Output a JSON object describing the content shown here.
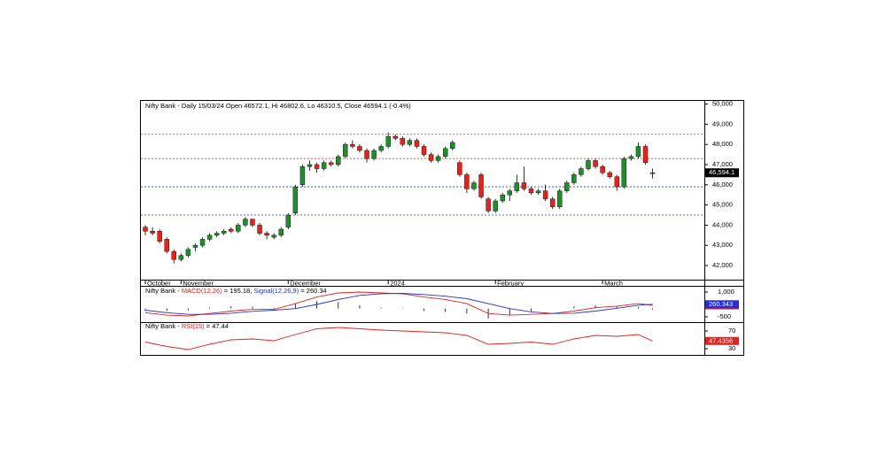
{
  "chart_data": [
    {
      "type": "candlestick",
      "title": "Nifty Bank - Daily 15/03/24 Open 46572.1, Hi 46802.6, Lo 46310.5, Close 46594.1 (-0.4%)",
      "ohlc": [
        [
          43900,
          44000,
          43500,
          43700
        ],
        [
          43700,
          43900,
          43500,
          43600
        ],
        [
          43700,
          43800,
          43100,
          43200
        ],
        [
          43300,
          43400,
          42600,
          42700
        ],
        [
          42700,
          42800,
          42100,
          42300
        ],
        [
          42300,
          42600,
          42200,
          42500
        ],
        [
          42500,
          42900,
          42400,
          42800
        ],
        [
          42900,
          43100,
          42700,
          43000
        ],
        [
          43000,
          43400,
          42900,
          43300
        ],
        [
          43300,
          43600,
          43200,
          43500
        ],
        [
          43500,
          43700,
          43400,
          43600
        ],
        [
          43600,
          43800,
          43500,
          43700
        ],
        [
          43800,
          43900,
          43600,
          43700
        ],
        [
          43700,
          44100,
          43600,
          44000
        ],
        [
          44000,
          44400,
          43900,
          44300
        ],
        [
          44300,
          44300,
          43900,
          44000
        ],
        [
          44000,
          44100,
          43500,
          43600
        ],
        [
          43600,
          43700,
          43300,
          43500
        ],
        [
          43400,
          43600,
          43300,
          43500
        ],
        [
          43500,
          43900,
          43400,
          43800
        ],
        [
          43900,
          44600,
          43800,
          44500
        ],
        [
          44600,
          46000,
          44500,
          45900
        ],
        [
          46000,
          47000,
          45900,
          46900
        ],
        [
          46900,
          47200,
          46700,
          47000
        ],
        [
          47000,
          47100,
          46600,
          46800
        ],
        [
          46800,
          47200,
          46700,
          47100
        ],
        [
          47100,
          47200,
          46900,
          47000
        ],
        [
          47000,
          47500,
          46900,
          47400
        ],
        [
          47400,
          48100,
          47300,
          48000
        ],
        [
          48000,
          48200,
          47800,
          47900
        ],
        [
          47900,
          48000,
          47600,
          47700
        ],
        [
          47700,
          47800,
          47100,
          47300
        ],
        [
          47300,
          47800,
          47200,
          47700
        ],
        [
          47700,
          48000,
          47600,
          47900
        ],
        [
          47900,
          48600,
          47800,
          48400
        ],
        [
          48400,
          48500,
          48200,
          48300
        ],
        [
          48300,
          48400,
          47900,
          48000
        ],
        [
          48000,
          48300,
          47900,
          48200
        ],
        [
          48200,
          48300,
          47800,
          47900
        ],
        [
          47900,
          48000,
          47400,
          47500
        ],
        [
          47500,
          47600,
          47100,
          47200
        ],
        [
          47200,
          47500,
          47100,
          47400
        ],
        [
          47400,
          47900,
          47300,
          47800
        ],
        [
          47800,
          48200,
          47700,
          48100
        ],
        [
          47100,
          47200,
          46400,
          46500
        ],
        [
          46500,
          46600,
          45600,
          45800
        ],
        [
          45800,
          46200,
          45700,
          46100
        ],
        [
          46500,
          46600,
          45300,
          45400
        ],
        [
          45300,
          45400,
          44600,
          44700
        ],
        [
          44700,
          45300,
          44600,
          45200
        ],
        [
          45200,
          45600,
          45100,
          45500
        ],
        [
          45500,
          45800,
          45200,
          45700
        ],
        [
          45700,
          46500,
          45600,
          46100
        ],
        [
          46100,
          46900,
          45700,
          45800
        ],
        [
          45800,
          45900,
          45500,
          45600
        ],
        [
          45600,
          45800,
          45500,
          45700
        ],
        [
          45700,
          46000,
          45200,
          45300
        ],
        [
          45300,
          45400,
          44800,
          44900
        ],
        [
          44900,
          45800,
          44800,
          45700
        ],
        [
          45700,
          46200,
          45600,
          46100
        ],
        [
          46100,
          46600,
          46000,
          46500
        ],
        [
          46500,
          46900,
          46400,
          46800
        ],
        [
          46800,
          47300,
          46700,
          47200
        ],
        [
          47200,
          47300,
          46800,
          46900
        ],
        [
          46900,
          47000,
          46500,
          46600
        ],
        [
          46600,
          46700,
          46300,
          46400
        ],
        [
          46400,
          46500,
          45700,
          45900
        ],
        [
          45900,
          47400,
          45800,
          47300
        ],
        [
          47300,
          47500,
          47200,
          47400
        ],
        [
          47400,
          48100,
          47300,
          47900
        ],
        [
          47900,
          48000,
          47000,
          47100
        ],
        [
          46572.1,
          46802.6,
          46310.5,
          46594.1
        ]
      ],
      "up_color": "#1f8f2a",
      "down_color": "#e3231c",
      "last_value": 46594.1,
      "last_label": "46,594.1",
      "levels": [
        {
          "value": 48500,
          "color": "#e3231c"
        },
        {
          "value": 47300,
          "color": "#e3231c"
        },
        {
          "value": 45900,
          "color": "#2330d8"
        },
        {
          "value": 44500,
          "color": "#2330d8"
        }
      ],
      "xlim": [
        -0.5,
        78
      ],
      "xticks": [
        {
          "value": 0,
          "label": "October"
        },
        {
          "value": 5,
          "label": "November"
        },
        {
          "value": 20,
          "label": "December"
        },
        {
          "value": 34,
          "label": "2024"
        },
        {
          "value": 49,
          "label": "February"
        },
        {
          "value": 64,
          "label": "March"
        }
      ],
      "ylim": [
        41300,
        50200
      ],
      "yticks": [
        {
          "value": 42000,
          "label": "42,000"
        },
        {
          "value": 43000,
          "label": "43,000"
        },
        {
          "value": 44000,
          "label": "44,000"
        },
        {
          "value": 45000,
          "label": "45,000"
        },
        {
          "value": 46000,
          "label": "46,000"
        },
        {
          "value": 47000,
          "label": "47,000"
        },
        {
          "value": 48000,
          "label": "48,000"
        },
        {
          "value": 49000,
          "label": "49,000"
        },
        {
          "value": 50000,
          "label": "50,000"
        }
      ]
    },
    {
      "type": "macd",
      "prefix": "Nifty Bank - ",
      "x": [
        0,
        3,
        6,
        9,
        12,
        15,
        18,
        21,
        24,
        27,
        30,
        33,
        36,
        39,
        42,
        45,
        48,
        51,
        54,
        57,
        60,
        63,
        66,
        69,
        71
      ],
      "series": [
        {
          "name": "MACD(12,26)",
          "value_text": " = 195.18, ",
          "color": "#e3231c",
          "last_label": "195.18",
          "values": [
            -250,
            -400,
            -450,
            -300,
            -150,
            -50,
            -50,
            300,
            700,
            950,
            1000,
            950,
            900,
            700,
            550,
            300,
            -300,
            -400,
            -350,
            -300,
            -150,
            50,
            150,
            300,
            195.18
          ]
        },
        {
          "name": "Signal(12,26,9)",
          "value_text": " = 260.34",
          "color": "#2330d8",
          "last_label": "260.343",
          "values": [
            -100,
            -250,
            -350,
            -350,
            -280,
            -170,
            -100,
            0,
            250,
            550,
            800,
            900,
            920,
            850,
            750,
            600,
            300,
            0,
            -200,
            -300,
            -280,
            -150,
            20,
            200,
            260.34
          ]
        }
      ],
      "histogram": [
        -150,
        -150,
        -100,
        50,
        130,
        120,
        50,
        300,
        450,
        400,
        200,
        50,
        -20,
        -150,
        -200,
        -300,
        -600,
        -400,
        -150,
        0,
        130,
        200,
        130,
        100,
        -65
      ],
      "ylim": [
        -770,
        1270
      ],
      "yticks": [
        {
          "value": 1000,
          "label": "1,000"
        },
        {
          "value": -500,
          "label": "-500"
        }
      ]
    },
    {
      "type": "rsi",
      "prefix": "Nifty Bank - ",
      "x": [
        0,
        3,
        6,
        9,
        12,
        15,
        18,
        21,
        24,
        27,
        30,
        33,
        36,
        39,
        42,
        45,
        48,
        51,
        54,
        57,
        60,
        63,
        66,
        69,
        71
      ],
      "series": [
        {
          "name": "RSI(15)",
          "value_text": " = 47.44",
          "color": "#e3231c",
          "last_label": "47.4356",
          "values": [
            45,
            35,
            28,
            40,
            50,
            52,
            48,
            62,
            75,
            78,
            75,
            72,
            70,
            68,
            66,
            60,
            40,
            42,
            45,
            40,
            52,
            60,
            58,
            62,
            47.44
          ]
        }
      ],
      "ylim": [
        18,
        88
      ],
      "yticks": [
        70,
        30
      ]
    }
  ]
}
